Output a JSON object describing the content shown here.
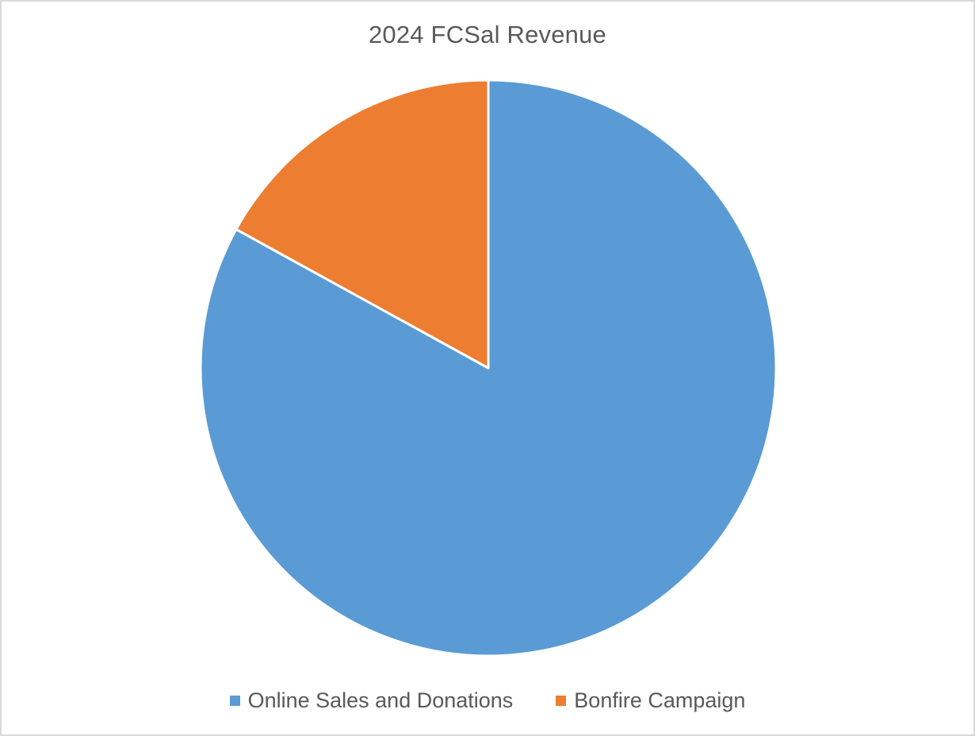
{
  "chart_data": {
    "type": "pie",
    "title": "2024 FCSal Revenue",
    "categories": [
      "Online Sales and Donations",
      "Bonfire Campaign"
    ],
    "values": [
      83,
      17
    ],
    "colors": [
      "#5B9BD5",
      "#ED7D31"
    ],
    "start_angle_deg": 0,
    "direction": "clockwise",
    "legend_position": "bottom"
  }
}
